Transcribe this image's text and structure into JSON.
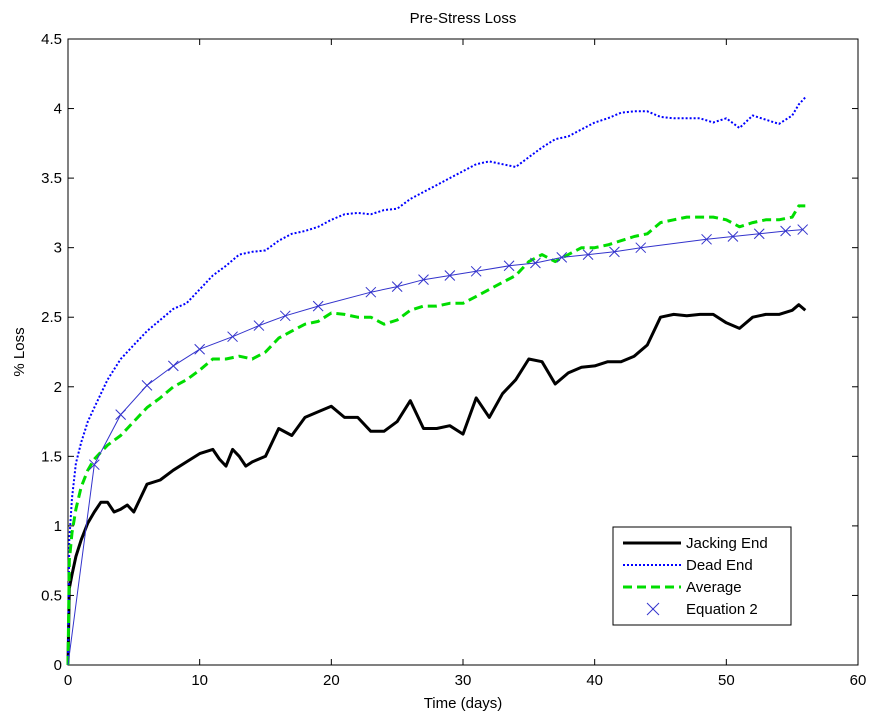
{
  "chart_data": {
    "type": "line",
    "title": "Pre-Stress Loss",
    "xlabel": "Time (days)",
    "ylabel": "% Loss",
    "xlim": [
      0,
      60
    ],
    "ylim": [
      0,
      4.5
    ],
    "xticks": [
      0,
      10,
      20,
      30,
      40,
      50,
      60
    ],
    "yticks": [
      0,
      0.5,
      1,
      1.5,
      2,
      2.5,
      3,
      3.5,
      4,
      4.5
    ],
    "x_tick_labels": [
      "0",
      "10",
      "20",
      "30",
      "40",
      "50",
      "60"
    ],
    "y_tick_labels": [
      "0",
      "0.5",
      "1",
      "1.5",
      "2",
      "2.5",
      "3",
      "3.5",
      "4",
      "4.5"
    ],
    "grid": false,
    "legend_position": "bottom-right",
    "series": [
      {
        "name": "Jacking End",
        "color": "#000000",
        "style": "solid",
        "x": [
          0,
          0.1,
          0.3,
          0.6,
          1,
          1.5,
          2,
          2.5,
          3,
          3.5,
          4,
          4.5,
          5,
          5.5,
          6,
          7,
          8,
          9,
          10,
          11,
          11.5,
          12,
          12.5,
          13,
          13.5,
          14,
          15,
          16,
          17,
          18,
          19,
          20,
          21,
          22,
          23,
          24,
          25,
          26,
          27,
          28,
          29,
          30,
          31,
          32,
          33,
          34,
          35,
          36,
          37,
          38,
          39,
          40,
          41,
          42,
          43,
          44,
          45,
          46,
          47,
          48,
          49,
          50,
          51,
          52,
          53,
          54,
          55,
          55.5,
          56
        ],
        "values": [
          0,
          0.55,
          0.65,
          0.78,
          0.9,
          1.02,
          1.1,
          1.17,
          1.17,
          1.1,
          1.12,
          1.15,
          1.1,
          1.2,
          1.3,
          1.33,
          1.4,
          1.46,
          1.52,
          1.55,
          1.48,
          1.43,
          1.55,
          1.5,
          1.43,
          1.46,
          1.5,
          1.7,
          1.65,
          1.78,
          1.82,
          1.86,
          1.78,
          1.78,
          1.68,
          1.68,
          1.75,
          1.9,
          1.7,
          1.7,
          1.72,
          1.66,
          1.92,
          1.78,
          1.95,
          2.05,
          2.2,
          2.18,
          2.02,
          2.1,
          2.14,
          2.15,
          2.18,
          2.18,
          2.22,
          2.3,
          2.5,
          2.52,
          2.51,
          2.52,
          2.52,
          2.46,
          2.42,
          2.5,
          2.52,
          2.52,
          2.55,
          2.59,
          2.55
        ]
      },
      {
        "name": "Dead End",
        "color": "#0000ff",
        "style": "dotted",
        "x": [
          0,
          0.1,
          0.3,
          0.6,
          1,
          1.5,
          2,
          3,
          4,
          5,
          6,
          7,
          8,
          9,
          10,
          11,
          12,
          13,
          14,
          15,
          16,
          17,
          18,
          19,
          20,
          21,
          22,
          23,
          24,
          25,
          26,
          27,
          28,
          29,
          30,
          31,
          32,
          33,
          34,
          35,
          36,
          37,
          38,
          39,
          40,
          41,
          42,
          43,
          44,
          45,
          46,
          47,
          48,
          49,
          50,
          51,
          52,
          53,
          54,
          55,
          55.5,
          56
        ],
        "values": [
          0,
          0.9,
          1.2,
          1.45,
          1.6,
          1.75,
          1.85,
          2.05,
          2.2,
          2.3,
          2.4,
          2.48,
          2.56,
          2.6,
          2.7,
          2.8,
          2.87,
          2.95,
          2.97,
          2.98,
          3.05,
          3.1,
          3.12,
          3.15,
          3.2,
          3.24,
          3.25,
          3.24,
          3.27,
          3.28,
          3.35,
          3.4,
          3.45,
          3.5,
          3.55,
          3.6,
          3.62,
          3.6,
          3.58,
          3.65,
          3.72,
          3.78,
          3.8,
          3.85,
          3.9,
          3.93,
          3.97,
          3.98,
          3.98,
          3.94,
          3.93,
          3.93,
          3.93,
          3.9,
          3.93,
          3.86,
          3.95,
          3.92,
          3.89,
          3.95,
          4.03,
          4.08
        ]
      },
      {
        "name": "Average",
        "color": "#00dd00",
        "style": "dashed",
        "x": [
          0,
          0.1,
          0.3,
          0.6,
          1,
          1.5,
          2,
          3,
          4,
          5,
          6,
          7,
          8,
          9,
          10,
          11,
          12,
          13,
          14,
          15,
          16,
          17,
          18,
          19,
          20,
          21,
          22,
          23,
          24,
          25,
          26,
          27,
          28,
          29,
          30,
          31,
          32,
          33,
          34,
          35,
          36,
          37,
          38,
          39,
          40,
          41,
          42,
          43,
          44,
          45,
          46,
          47,
          48,
          49,
          50,
          51,
          52,
          53,
          54,
          55,
          55.5,
          56
        ],
        "values": [
          0,
          0.75,
          0.95,
          1.12,
          1.28,
          1.4,
          1.48,
          1.58,
          1.65,
          1.75,
          1.85,
          1.92,
          2.0,
          2.05,
          2.12,
          2.2,
          2.2,
          2.22,
          2.2,
          2.25,
          2.35,
          2.4,
          2.45,
          2.47,
          2.53,
          2.52,
          2.5,
          2.5,
          2.45,
          2.48,
          2.55,
          2.58,
          2.58,
          2.6,
          2.6,
          2.65,
          2.7,
          2.75,
          2.8,
          2.9,
          2.95,
          2.9,
          2.95,
          3.0,
          3.0,
          3.02,
          3.05,
          3.08,
          3.1,
          3.18,
          3.2,
          3.22,
          3.22,
          3.22,
          3.2,
          3.15,
          3.18,
          3.2,
          3.2,
          3.22,
          3.3,
          3.3
        ]
      },
      {
        "name": "Equation 2",
        "color": "#3333cc",
        "style": "x-markers",
        "x": [
          0,
          2,
          4,
          6,
          8,
          10,
          12.5,
          14.5,
          16.5,
          19,
          23,
          25,
          27,
          29,
          31,
          33.5,
          35.5,
          37.5,
          39.5,
          41.5,
          43.5,
          48.5,
          50.5,
          52.5,
          54.5,
          55.8
        ],
        "values": [
          0,
          1.44,
          1.8,
          2.01,
          2.15,
          2.27,
          2.36,
          2.44,
          2.51,
          2.58,
          2.68,
          2.72,
          2.77,
          2.8,
          2.83,
          2.87,
          2.89,
          2.93,
          2.95,
          2.97,
          3.0,
          3.06,
          3.08,
          3.1,
          3.12,
          3.13
        ]
      }
    ]
  }
}
